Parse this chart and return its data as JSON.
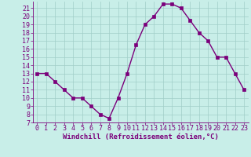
{
  "x": [
    0,
    1,
    2,
    3,
    4,
    5,
    6,
    7,
    8,
    9,
    10,
    11,
    12,
    13,
    14,
    15,
    16,
    17,
    18,
    19,
    20,
    21,
    22,
    23
  ],
  "y": [
    13,
    13,
    12,
    11,
    10,
    10,
    9,
    8,
    7.5,
    10,
    13,
    16.5,
    19,
    20,
    21.5,
    21.5,
    21,
    19.5,
    18,
    17,
    15,
    15,
    13,
    11
  ],
  "line_color": "#7b007b",
  "bg_color": "#c8eee8",
  "xlabel": "Windchill (Refroidissement éolien,°C)",
  "ylim_min": 7,
  "ylim_max": 21.8,
  "xlim_min": -0.5,
  "xlim_max": 23.5,
  "yticks": [
    7,
    8,
    9,
    10,
    11,
    12,
    13,
    14,
    15,
    16,
    17,
    18,
    19,
    20,
    21
  ],
  "xticks": [
    0,
    1,
    2,
    3,
    4,
    5,
    6,
    7,
    8,
    9,
    10,
    11,
    12,
    13,
    14,
    15,
    16,
    17,
    18,
    19,
    20,
    21,
    22,
    23
  ],
  "grid_color": "#a0cdc8",
  "markersize": 2.5,
  "linewidth": 1.0,
  "xlabel_fontsize": 6.5,
  "tick_fontsize": 6,
  "label_color": "#7b007b"
}
